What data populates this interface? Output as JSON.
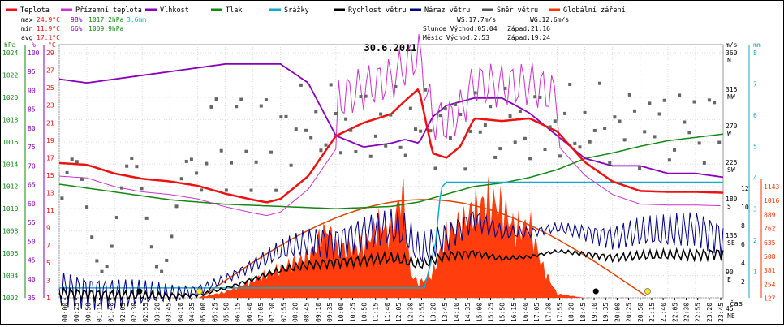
{
  "legend": [
    {
      "label": "Teplota",
      "color": "#ee1111"
    },
    {
      "label": "Přízemní teplota",
      "color": "#cc33cc"
    },
    {
      "label": "Vlhkost",
      "color": "#8800bb"
    },
    {
      "label": "Tlak",
      "color": "#118811"
    },
    {
      "label": "Srážky",
      "color": "#11aacc"
    },
    {
      "label": "Rychlost větru",
      "color": "#000000"
    },
    {
      "label": "Náraz větru",
      "color": "#000088"
    },
    {
      "label": "Směr větru",
      "color": "#555555"
    },
    {
      "label": "Globální záření",
      "color": "#ff3300"
    }
  ],
  "stats": {
    "max_label": "max",
    "max_temp": "24.9°C",
    "max_hum": "98%",
    "max_press": "1017.2hPa",
    "max_rain": "3.6mm",
    "min_label": "min",
    "min_temp": "11.9°C",
    "min_hum": "66%",
    "min_press": "1009.9hPa",
    "avg_label": "avg",
    "avg_temp": "17.1°C"
  },
  "sun_moon": {
    "ws": "WS:17.7m/s",
    "wg": "WG:12.6m/s",
    "sun": "Slunce Východ:05:04",
    "sun_set": "Západ:21:16",
    "moon": "Měsíc  Východ:2:53",
    "moon_set": "Západ:19:24"
  },
  "chart_data": {
    "type": "line",
    "title": "30.6.2011",
    "xlabel": "čas",
    "x_ticks": [
      "00:00",
      "00:25",
      "00:50",
      "01:15",
      "01:40",
      "02:05",
      "02:30",
      "02:55",
      "03:20",
      "03:45",
      "04:10",
      "04:35",
      "05:00",
      "05:25",
      "05:50",
      "06:15",
      "06:40",
      "07:05",
      "07:30",
      "07:55",
      "08:20",
      "08:45",
      "09:10",
      "09:35",
      "10:00",
      "10:25",
      "10:50",
      "11:15",
      "11:40",
      "12:05",
      "12:30",
      "12:55",
      "13:20",
      "13:45",
      "14:10",
      "14:35",
      "15:00",
      "15:25",
      "15:50",
      "16:15",
      "16:40",
      "17:05",
      "17:30",
      "17:55",
      "18:20",
      "18:45",
      "19:10",
      "19:35",
      "20:00",
      "20:25",
      "20:50",
      "21:15",
      "21:40",
      "22:05",
      "22:30",
      "22:55",
      "23:20",
      "23:45"
    ],
    "axes": {
      "pressure": {
        "unit": "hPa",
        "ticks": [
          "1024",
          "1022",
          "1020",
          "1018",
          "1016",
          "1014",
          "1012",
          "1010",
          "1008",
          "1006",
          "1004",
          "1002"
        ],
        "color": "#118811"
      },
      "humidity": {
        "unit": "%",
        "ticks": [
          "100",
          "95",
          "90",
          "85",
          "80",
          "75",
          "70",
          "65",
          "60",
          "55",
          "50",
          "45",
          "40",
          "35"
        ],
        "color": "#8800bb"
      },
      "temperature": {
        "unit": "°C",
        "ticks": [
          "29",
          "27",
          "25",
          "23",
          "21",
          "19",
          "17",
          "15",
          "13",
          "11",
          "9",
          "7",
          "5",
          "3",
          "1"
        ],
        "color": "#ee1111"
      },
      "wind_dir": {
        "unit": "m/s",
        "ticks": [
          "360 N",
          "315 NW",
          "270 W",
          "225 SW",
          "180 S",
          "135 SE",
          "90 E",
          "45 NE"
        ]
      },
      "wind_speed": {
        "ticks": [
          "12",
          "10",
          "8",
          "6",
          "4",
          "2"
        ]
      },
      "rain": {
        "unit": "mm",
        "ticks": [
          "8",
          "7",
          "6",
          "5",
          "4",
          "3",
          "2",
          "1"
        ],
        "color": "#11aacc"
      },
      "radiation": {
        "ticks": [
          "1143",
          "1016",
          "889",
          "762",
          "635",
          "508",
          "381",
          "254",
          "127"
        ],
        "color": "#ff3300"
      }
    },
    "series": [
      {
        "name": "Teplota",
        "unit": "°C",
        "x": [
          0,
          1,
          2,
          3,
          4,
          5,
          6,
          7,
          7.5,
          8,
          9,
          10,
          11,
          12,
          12.5,
          13,
          13.5,
          14,
          14.5,
          15,
          16,
          17,
          18,
          19,
          20,
          21,
          22,
          23,
          24
        ],
        "y": [
          16.4,
          16.2,
          15.2,
          14.6,
          14.3,
          13.8,
          12.9,
          12.2,
          11.9,
          12.3,
          14.9,
          19.5,
          21.0,
          22.0,
          23.5,
          24.9,
          17.5,
          17.0,
          18.3,
          21.5,
          21.2,
          21.5,
          20.0,
          16.5,
          14.3,
          13.2,
          13.1,
          13.1,
          13.0
        ]
      },
      {
        "name": "Vlhkost",
        "unit": "%",
        "x": [
          0,
          1,
          2,
          3,
          4,
          5,
          6,
          7,
          8,
          9,
          10,
          11,
          12,
          12.5,
          13,
          13.5,
          14,
          15,
          16,
          17,
          18,
          19,
          20,
          21,
          22,
          23,
          24
        ],
        "y": [
          93,
          92,
          93,
          94,
          95,
          96,
          97,
          97,
          97,
          92,
          78,
          75,
          76,
          77,
          76,
          83,
          86,
          88,
          88,
          84,
          78,
          72,
          70,
          70,
          68,
          68,
          67
        ]
      },
      {
        "name": "Tlak",
        "unit": "hPa",
        "x": [
          0,
          2,
          4,
          6,
          8,
          10,
          12,
          13,
          14,
          15,
          16,
          17,
          18,
          19,
          20,
          21,
          22,
          23,
          24
        ],
        "y": [
          1012.2,
          1011.5,
          1010.8,
          1010.4,
          1010.2,
          1010.0,
          1010.2,
          1010.6,
          1011.3,
          1012.0,
          1012.3,
          1012.8,
          1013.5,
          1014.5,
          1015.0,
          1015.6,
          1016.1,
          1016.4,
          1016.7
        ]
      },
      {
        "name": "Srážky",
        "unit": "mm",
        "x": [
          0,
          13.2,
          13.6,
          13.8,
          14.0,
          24
        ],
        "y": [
          0,
          0,
          1.5,
          3.4,
          3.6,
          3.6
        ]
      },
      {
        "name": "Rychlost větru",
        "unit": "m/s",
        "x": [
          0,
          2,
          4,
          5,
          6,
          7,
          8,
          9,
          10,
          11,
          12,
          12.5,
          13,
          14,
          15,
          16,
          17,
          18,
          19,
          20,
          21,
          22,
          23,
          24
        ],
        "y": [
          0.5,
          0.3,
          0.2,
          0.3,
          1.0,
          2.0,
          3.0,
          3.5,
          3.8,
          4.0,
          4.3,
          4.0,
          3.5,
          4.5,
          4.8,
          4.2,
          4.4,
          5.0,
          4.7,
          4.3,
          4.5,
          4.6,
          4.6,
          4.8
        ]
      },
      {
        "name": "Náraz větru",
        "unit": "m/s",
        "x": [
          0,
          2,
          4,
          5,
          6,
          7,
          8,
          9,
          10,
          11,
          12,
          12.5,
          13,
          14,
          15,
          16,
          17,
          18,
          19,
          20,
          21,
          22,
          23,
          24
        ],
        "y": [
          1.0,
          0.5,
          0.4,
          0.8,
          2.0,
          3.5,
          5.0,
          6.0,
          6.0,
          7.0,
          7.5,
          7.0,
          5.0,
          6.5,
          8.5,
          7.0,
          7.0,
          7.5,
          7.0,
          6.5,
          7.0,
          7.0,
          7.5,
          6.5
        ]
      },
      {
        "name": "Globální záření",
        "unit": "W/m2",
        "x": [
          0,
          5,
          6,
          7,
          8,
          9,
          9.7,
          10,
          11,
          11.5,
          12,
          12.4,
          12.7,
          13,
          13.5,
          14,
          15,
          15.5,
          16,
          16.5,
          17,
          17.5,
          18,
          19,
          24
        ],
        "y": [
          0,
          0,
          60,
          180,
          300,
          420,
          720,
          500,
          520,
          760,
          650,
          1110,
          250,
          150,
          250,
          650,
          900,
          1000,
          930,
          700,
          750,
          300,
          40,
          0,
          0
        ]
      }
    ]
  }
}
